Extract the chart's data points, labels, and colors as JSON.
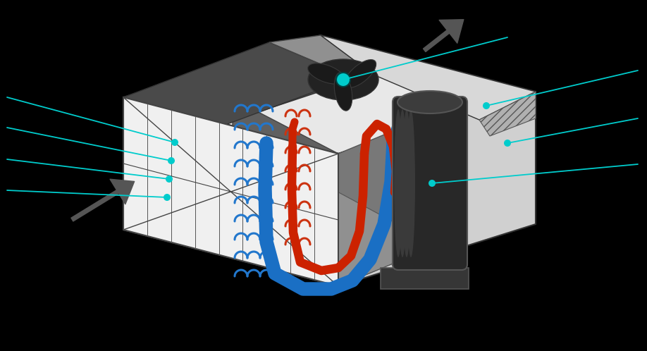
{
  "bg": "#000000",
  "box_top_color": "#e8e8e8",
  "box_left_color": "#f5f5f5",
  "box_right_color": "#d0d0d0",
  "dark_panel_color": "#505050",
  "grey_strip_color": "#909090",
  "inner_bg_color": "#787878",
  "inner_right_bg": "#888888",
  "grill_color": "#b8b8b8",
  "filter_color": "#f0f0f0",
  "floor_color": "#c0c0c0",
  "cyl_body": "#282828",
  "cyl_top": "#404040",
  "cyl_base": "#383838",
  "fan_blade": "#1e1e1e",
  "blue_pipe": "#1a6fc4",
  "red_pipe": "#cc2200",
  "cyan_color": "#00cccc",
  "arrow_dark": "#555555",
  "line_dark": "#333333",
  "wave_blue": "#2277cc",
  "wave_red": "#cc3311",
  "right_wall": "#e0e0e0"
}
